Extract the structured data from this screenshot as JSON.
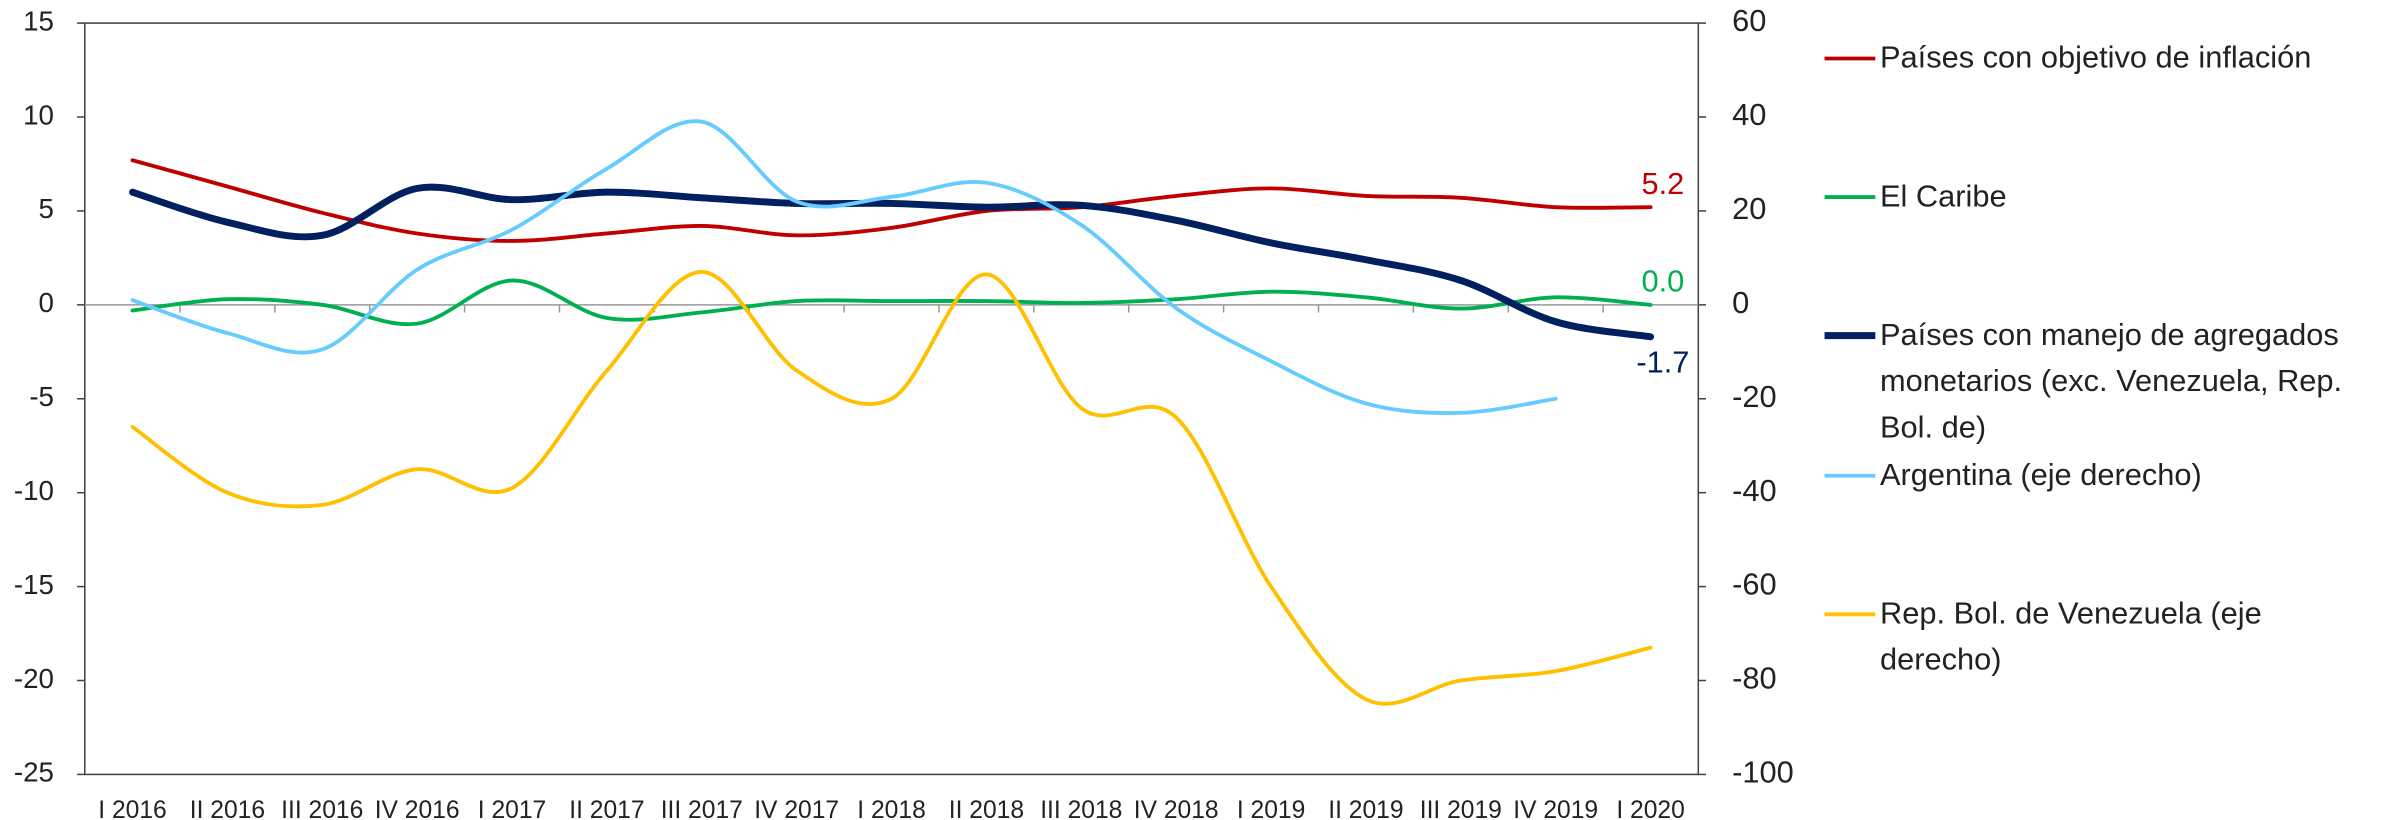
{
  "chart_data": {
    "type": "line",
    "categories": [
      "I 2016",
      "II 2016",
      "III 2016",
      "IV 2016",
      "I 2017",
      "II 2017",
      "III 2017",
      "IV 2017",
      "I 2018",
      "II 2018",
      "III 2018",
      "IV 2018",
      "I 2019",
      "II 2019",
      "III 2019",
      "IV 2019",
      "I 2020"
    ],
    "ylim": [
      -25,
      15
    ],
    "yticks": [
      -25,
      -20,
      -15,
      -10,
      -5,
      0,
      5,
      10,
      15
    ],
    "y2lim": [
      -100,
      60
    ],
    "y2ticks": [
      -100,
      -80,
      -60,
      -40,
      -20,
      0,
      20,
      40,
      60
    ],
    "series": [
      {
        "name": "Países con objetivo de inflación",
        "color": "#c00000",
        "width": 2.5,
        "values": [
          7.7,
          6.3,
          4.9,
          3.8,
          3.4,
          3.8,
          4.2,
          3.7,
          4.1,
          5.0,
          5.2,
          5.8,
          6.2,
          5.8,
          5.7,
          5.2,
          5.2
        ],
        "value_labels": [
          null,
          null,
          null,
          null,
          null,
          null,
          null,
          null,
          null,
          null,
          null,
          null,
          null,
          null,
          null,
          null,
          "5.2"
        ]
      },
      {
        "name": "El Caribe",
        "color": "#00b050",
        "width": 2.5,
        "values": [
          -0.3,
          0.3,
          0.0,
          -1.0,
          1.3,
          -0.7,
          -0.4,
          0.2,
          0.2,
          0.2,
          0.1,
          0.3,
          0.7,
          0.4,
          -0.2,
          0.4,
          0.0
        ],
        "value_labels": [
          null,
          null,
          null,
          null,
          null,
          null,
          null,
          null,
          null,
          null,
          null,
          null,
          null,
          null,
          null,
          null,
          "0.0"
        ]
      },
      {
        "name": "Países con manejo de agregados monetarios (exc. Venezuela, Rep. Bol. de)",
        "color": "#002060",
        "width": 4.5,
        "values": [
          6.0,
          4.4,
          3.7,
          6.2,
          5.6,
          6.0,
          5.7,
          5.4,
          5.4,
          5.2,
          5.3,
          4.5,
          3.3,
          2.4,
          1.3,
          -0.9,
          -1.7
        ],
        "value_labels": [
          null,
          null,
          null,
          null,
          null,
          null,
          null,
          null,
          null,
          null,
          null,
          null,
          null,
          null,
          null,
          null,
          "-1.7"
        ]
      },
      {
        "name": "Argentina (eje derecho)",
        "color": "#66ccff",
        "width": 2.5,
        "axis": "y2",
        "values": [
          1,
          -6,
          -9.5,
          7.5,
          16,
          29,
          39,
          22,
          23,
          26,
          17,
          -0.7,
          -12,
          -21,
          -23,
          -20,
          null
        ]
      },
      {
        "name": "Rep. Bol. de Venezuela  (eje derecho)",
        "color": "#ffc000",
        "width": 2.5,
        "axis": "y2",
        "values": [
          -26,
          -40,
          -42.6,
          -35,
          -39,
          -14,
          7,
          -14,
          -20,
          6.5,
          -22,
          -24,
          -60,
          -84,
          -80,
          -78,
          -73
        ]
      }
    ]
  }
}
